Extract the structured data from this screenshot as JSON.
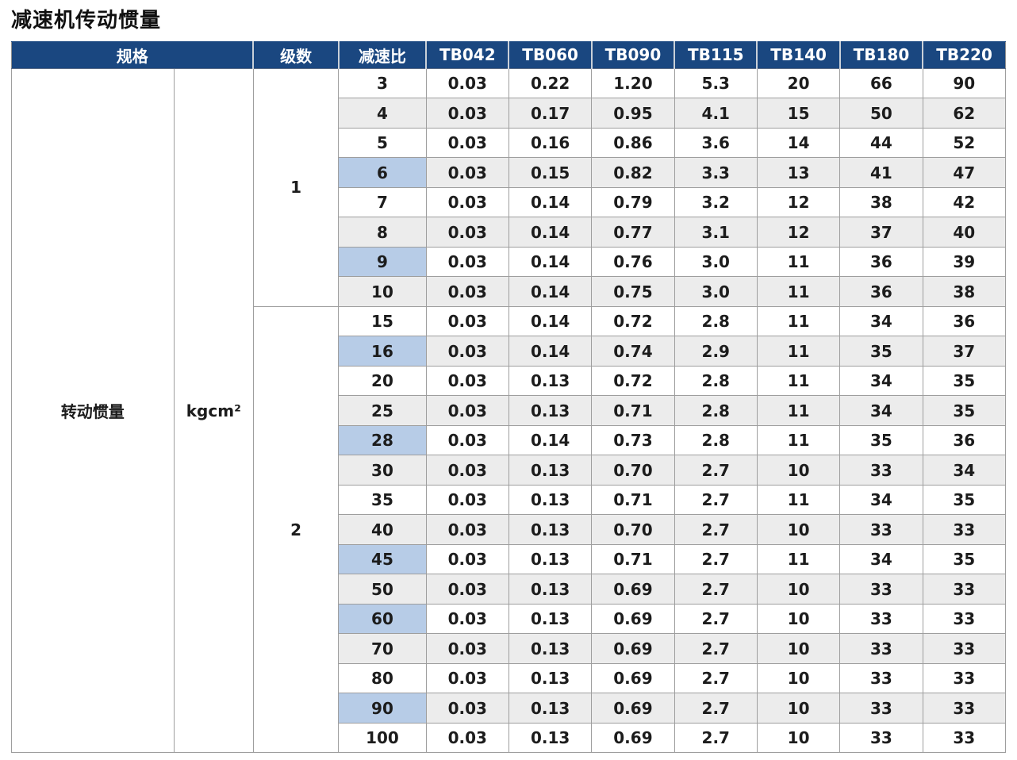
{
  "title": "减速机传动惯量",
  "colors": {
    "header_bg": "#1a4780",
    "header_text": "#ffffff",
    "highlight": "#b7cce7",
    "stripe": "#ececec",
    "border": "#9e9e9e",
    "text": "#1c1c1c"
  },
  "table": {
    "header": {
      "spec": "规格",
      "stages": "级数",
      "ratio": "减速比",
      "models": [
        "TB042",
        "TB060",
        "TB090",
        "TB115",
        "TB140",
        "TB180",
        "TB220"
      ]
    },
    "spec_label": "转动惯量",
    "unit": "kgcm²",
    "groups": [
      {
        "stage": "1",
        "rows": [
          {
            "ratio": "3",
            "highlight": false,
            "values": [
              "0.03",
              "0.22",
              "1.20",
              "5.3",
              "20",
              "66",
              "90"
            ]
          },
          {
            "ratio": "4",
            "highlight": false,
            "values": [
              "0.03",
              "0.17",
              "0.95",
              "4.1",
              "15",
              "50",
              "62"
            ]
          },
          {
            "ratio": "5",
            "highlight": false,
            "values": [
              "0.03",
              "0.16",
              "0.86",
              "3.6",
              "14",
              "44",
              "52"
            ]
          },
          {
            "ratio": "6",
            "highlight": true,
            "values": [
              "0.03",
              "0.15",
              "0.82",
              "3.3",
              "13",
              "41",
              "47"
            ]
          },
          {
            "ratio": "7",
            "highlight": false,
            "values": [
              "0.03",
              "0.14",
              "0.79",
              "3.2",
              "12",
              "38",
              "42"
            ]
          },
          {
            "ratio": "8",
            "highlight": false,
            "values": [
              "0.03",
              "0.14",
              "0.77",
              "3.1",
              "12",
              "37",
              "40"
            ]
          },
          {
            "ratio": "9",
            "highlight": true,
            "values": [
              "0.03",
              "0.14",
              "0.76",
              "3.0",
              "11",
              "36",
              "39"
            ]
          },
          {
            "ratio": "10",
            "highlight": false,
            "values": [
              "0.03",
              "0.14",
              "0.75",
              "3.0",
              "11",
              "36",
              "38"
            ]
          }
        ]
      },
      {
        "stage": "2",
        "rows": [
          {
            "ratio": "15",
            "highlight": false,
            "values": [
              "0.03",
              "0.14",
              "0.72",
              "2.8",
              "11",
              "34",
              "36"
            ]
          },
          {
            "ratio": "16",
            "highlight": true,
            "values": [
              "0.03",
              "0.14",
              "0.74",
              "2.9",
              "11",
              "35",
              "37"
            ]
          },
          {
            "ratio": "20",
            "highlight": false,
            "values": [
              "0.03",
              "0.13",
              "0.72",
              "2.8",
              "11",
              "34",
              "35"
            ]
          },
          {
            "ratio": "25",
            "highlight": false,
            "values": [
              "0.03",
              "0.13",
              "0.71",
              "2.8",
              "11",
              "34",
              "35"
            ]
          },
          {
            "ratio": "28",
            "highlight": true,
            "values": [
              "0.03",
              "0.14",
              "0.73",
              "2.8",
              "11",
              "35",
              "36"
            ]
          },
          {
            "ratio": "30",
            "highlight": false,
            "values": [
              "0.03",
              "0.13",
              "0.70",
              "2.7",
              "10",
              "33",
              "34"
            ]
          },
          {
            "ratio": "35",
            "highlight": false,
            "values": [
              "0.03",
              "0.13",
              "0.71",
              "2.7",
              "11",
              "34",
              "35"
            ]
          },
          {
            "ratio": "40",
            "highlight": false,
            "values": [
              "0.03",
              "0.13",
              "0.70",
              "2.7",
              "10",
              "33",
              "33"
            ]
          },
          {
            "ratio": "45",
            "highlight": true,
            "values": [
              "0.03",
              "0.13",
              "0.71",
              "2.7",
              "11",
              "34",
              "35"
            ]
          },
          {
            "ratio": "50",
            "highlight": false,
            "values": [
              "0.03",
              "0.13",
              "0.69",
              "2.7",
              "10",
              "33",
              "33"
            ]
          },
          {
            "ratio": "60",
            "highlight": true,
            "values": [
              "0.03",
              "0.13",
              "0.69",
              "2.7",
              "10",
              "33",
              "33"
            ]
          },
          {
            "ratio": "70",
            "highlight": false,
            "values": [
              "0.03",
              "0.13",
              "0.69",
              "2.7",
              "10",
              "33",
              "33"
            ]
          },
          {
            "ratio": "80",
            "highlight": false,
            "values": [
              "0.03",
              "0.13",
              "0.69",
              "2.7",
              "10",
              "33",
              "33"
            ]
          },
          {
            "ratio": "90",
            "highlight": true,
            "values": [
              "0.03",
              "0.13",
              "0.69",
              "2.7",
              "10",
              "33",
              "33"
            ]
          },
          {
            "ratio": "100",
            "highlight": false,
            "values": [
              "0.03",
              "0.13",
              "0.69",
              "2.7",
              "10",
              "33",
              "33"
            ]
          }
        ]
      }
    ]
  }
}
